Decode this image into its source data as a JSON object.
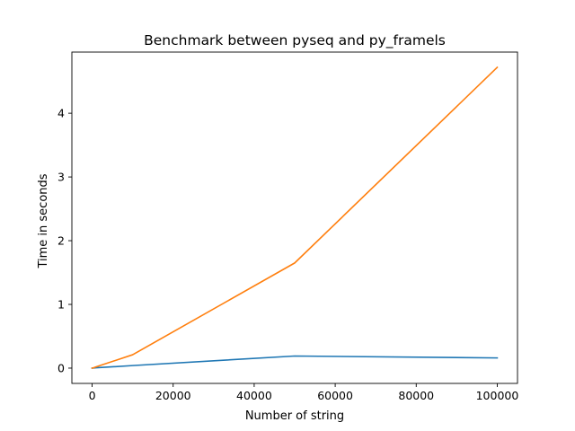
{
  "chart_data": {
    "type": "line",
    "title": "Benchmark between pyseq and py_framels",
    "xlabel": "Number of string",
    "ylabel": "Time in seconds",
    "xlim": [
      -5000,
      105000
    ],
    "ylim": [
      -0.24,
      4.96
    ],
    "x_ticks": [
      0,
      20000,
      40000,
      60000,
      80000,
      100000
    ],
    "y_ticks": [
      0,
      1,
      2,
      3,
      4
    ],
    "grid": false,
    "legend": "none",
    "series": [
      {
        "color": "#1f77b4",
        "x": [
          1,
          100,
          1000,
          10000,
          50000,
          100000
        ],
        "values": [
          0.0,
          0.0,
          0.005,
          0.04,
          0.19,
          0.16
        ]
      },
      {
        "color": "#ff7f0e",
        "x": [
          1,
          100,
          1000,
          10000,
          50000,
          100000
        ],
        "values": [
          0.0,
          0.0,
          0.02,
          0.21,
          1.65,
          4.72
        ]
      }
    ]
  }
}
